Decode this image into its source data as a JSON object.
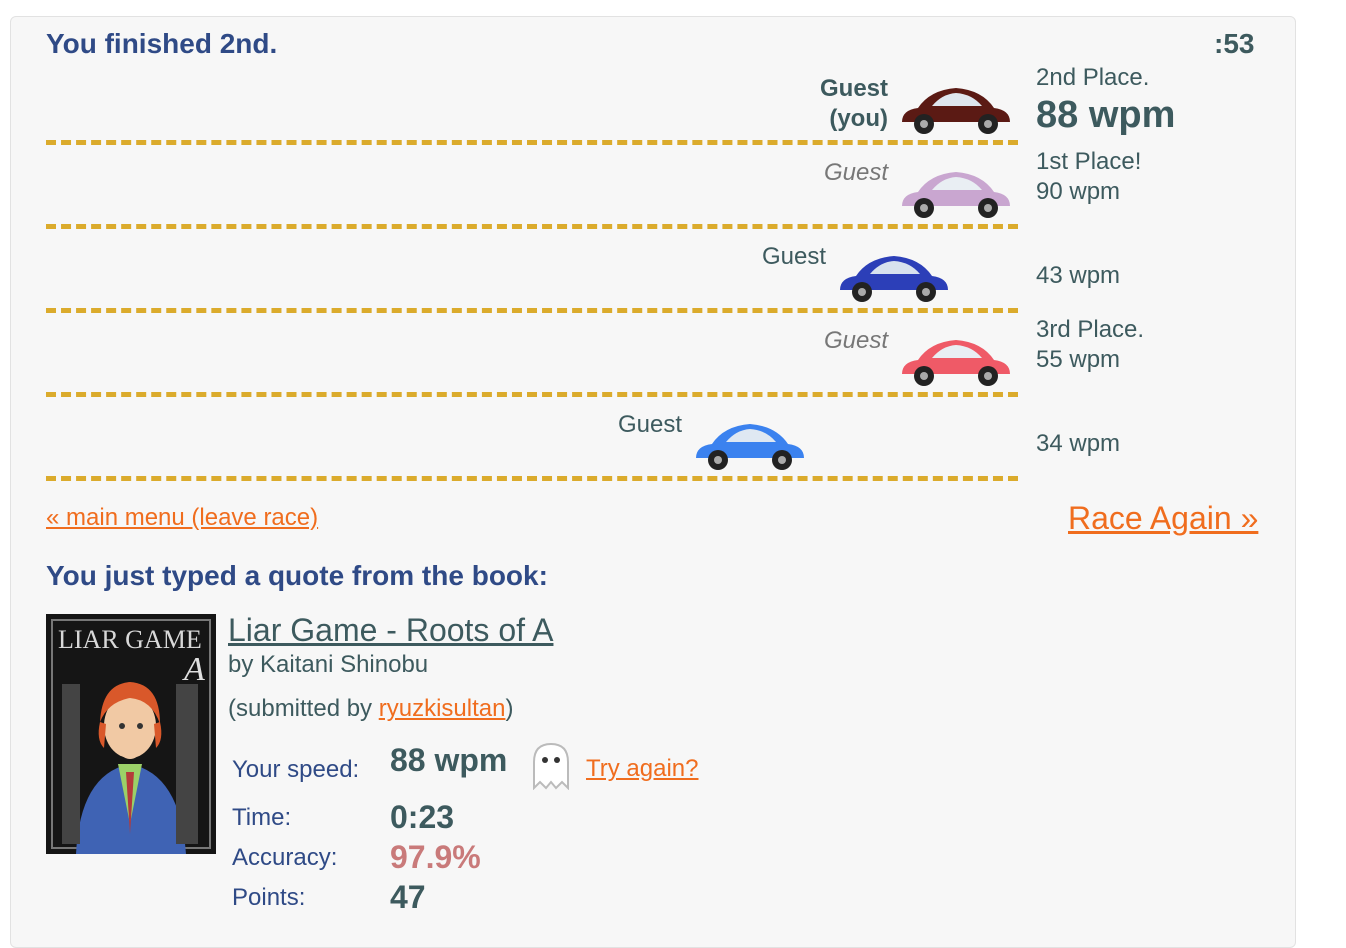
{
  "race": {
    "status": "You finished 2nd.",
    "timer": ":53",
    "racers": [
      {
        "name_line1": "Guest",
        "name_line2": "(you)",
        "place": "2nd Place.",
        "wpm": "88 wpm",
        "car_color": "#5b1a14"
      },
      {
        "name_line1": "Guest",
        "name_line2": "",
        "place": "1st Place!",
        "wpm": "90 wpm",
        "car_color": "#c9a6d0"
      },
      {
        "name_line1": "Guest",
        "name_line2": "",
        "place": "",
        "wpm": "43 wpm",
        "car_color": "#2c3fb8"
      },
      {
        "name_line1": "Guest",
        "name_line2": "",
        "place": "3rd Place.",
        "wpm": "55 wpm",
        "car_color": "#ef5a67"
      },
      {
        "name_line1": "Guest",
        "name_line2": "",
        "place": "",
        "wpm": "34 wpm",
        "car_color": "#3b82ef"
      }
    ],
    "lane_color": "#dbab2c"
  },
  "links": {
    "main_menu": "« main menu (leave race)",
    "race_again": "Race Again »"
  },
  "quote": {
    "heading": "You just typed a quote from the book:",
    "book_title": "Liar Game - Roots of A",
    "author": "by Kaitani Shinobu",
    "submitted_prefix": "(submitted by ",
    "submitted_user": "ryuzkisultan",
    "submitted_suffix": ")",
    "cover_title": "LIAR GAME",
    "cover_letter": "A"
  },
  "stats": {
    "speed_label": "Your speed:",
    "speed_value": "88 wpm",
    "try_again": "Try again?",
    "time_label": "Time:",
    "time_value": "0:23",
    "accuracy_label": "Accuracy:",
    "accuracy_value": "97.9%",
    "points_label": "Points:",
    "points_value": "47"
  },
  "colors": {
    "heading": "#2f4a86",
    "text": "#3d5a5e",
    "link": "#f06d1e",
    "accuracy": "#c97a7a"
  }
}
